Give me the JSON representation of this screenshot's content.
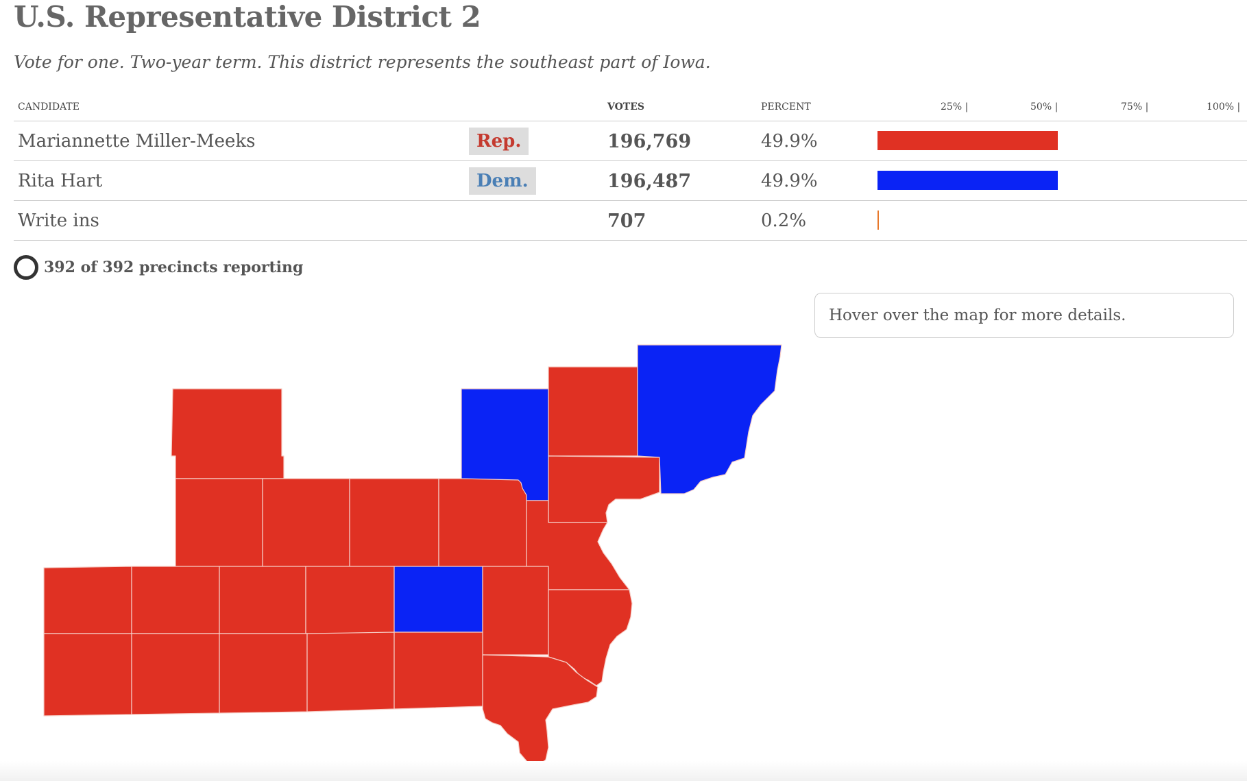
{
  "header": {
    "title": "U.S. Representative District 2",
    "subtitle": "Vote for one. Two-year term. This district represents the southeast part of Iowa."
  },
  "table": {
    "columns": {
      "candidate": "CANDIDATE",
      "votes": "VOTES",
      "percent": "PERCENT"
    },
    "scale_ticks": [
      "25% |",
      "50% |",
      "75% |",
      "100% |"
    ],
    "rows": [
      {
        "name": "Mariannette Miller-Meeks",
        "party": "Rep.",
        "party_color": "#c43a2f",
        "votes": "196,769",
        "percent": "49.9%",
        "share": 0.499,
        "bar_color": "#e03123"
      },
      {
        "name": "Rita Hart",
        "party": "Dem.",
        "party_color": "#4a7fb5",
        "votes": "196,487",
        "percent": "49.9%",
        "share": 0.499,
        "bar_color": "#0a23f5"
      },
      {
        "name": "Write ins",
        "party": "",
        "party_color": "",
        "votes": "707",
        "percent": "0.2%",
        "share": 0.002,
        "bar_color": "#e8782a"
      }
    ]
  },
  "precincts": {
    "text": "392 of 392 precincts reporting",
    "icon": "circle-ring-icon"
  },
  "map": {
    "hover_hint": "Hover over the map for more details.",
    "colors": {
      "rep": "#e03123",
      "dem": "#0a23f5",
      "border": "#f4c7c0"
    }
  }
}
